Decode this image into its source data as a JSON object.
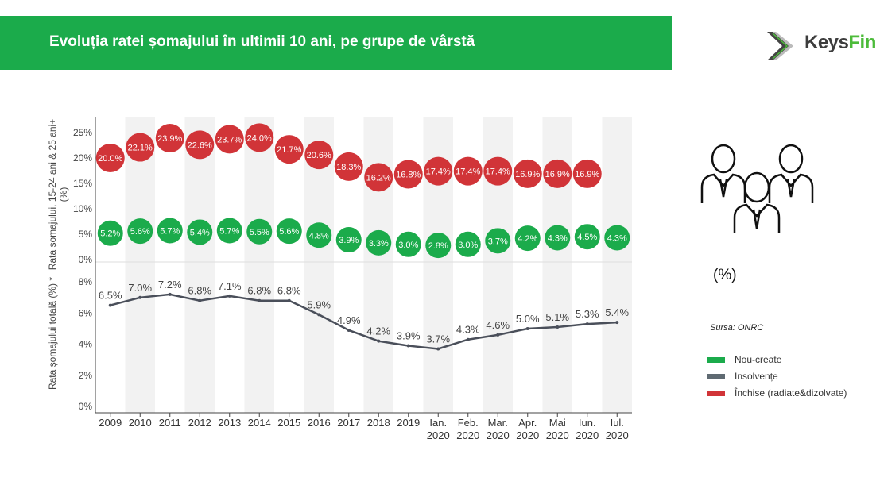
{
  "header": {
    "title": "Evoluția ratei șomajului în ultimii 10 ani, pe grupe de vârstă"
  },
  "logo": {
    "text_main": "Keys",
    "text_accent": "Fin"
  },
  "side": {
    "unit": "(%)",
    "source": "Sursa: ONRC",
    "icon": "people-group-icon"
  },
  "legend": [
    {
      "label": "Nou-create",
      "color": "#1bab4b"
    },
    {
      "label": "Insolvențe",
      "color": "#5f6a72"
    },
    {
      "label": "Închise (radiate&dizolvate)",
      "color": "#d13438"
    }
  ],
  "chart_data": [
    {
      "type": "scatter",
      "ylabel": "Rata șomajului, 15-24 ani & 25 ani+ (%)",
      "ylim": [
        0,
        27
      ],
      "yticks": [
        "0%",
        "5%",
        "10%",
        "15%",
        "20%",
        "25%"
      ],
      "ytick_values": [
        0,
        5,
        10,
        15,
        20,
        25
      ],
      "categories": [
        "2009",
        "2010",
        "2011",
        "2012",
        "2013",
        "2014",
        "2015",
        "2016",
        "2017",
        "2018",
        "2019",
        "Ian. 2020",
        "Feb. 2020",
        "Mar. 2020",
        "Apr. 2020",
        "Mai 2020",
        "Iun. 2020",
        "Iul. 2020"
      ],
      "series": [
        {
          "color": "#d13438",
          "values": [
            20.0,
            22.1,
            23.9,
            22.6,
            23.7,
            24.0,
            21.7,
            20.6,
            18.3,
            16.2,
            16.8,
            17.4,
            17.4,
            17.4,
            16.9,
            16.9,
            16.9,
            null
          ]
        },
        {
          "color": "#1bab4b",
          "values": [
            5.2,
            5.6,
            5.7,
            5.4,
            5.7,
            5.5,
            5.6,
            4.8,
            3.9,
            3.3,
            3.0,
            2.8,
            3.0,
            3.7,
            4.2,
            4.3,
            4.5,
            4.3
          ]
        }
      ]
    },
    {
      "type": "line",
      "ylabel": "Rata șomajului totală (%) *",
      "ylim": [
        0,
        8.5
      ],
      "yticks": [
        "0%",
        "2%",
        "4%",
        "6%",
        "8%"
      ],
      "ytick_values": [
        0,
        2,
        4,
        6,
        8
      ],
      "categories": [
        "2009",
        "2010",
        "2011",
        "2012",
        "2013",
        "2014",
        "2015",
        "2016",
        "2017",
        "2018",
        "2019",
        "Ian. 2020",
        "Feb. 2020",
        "Mar. 2020",
        "Apr. 2020",
        "Mai 2020",
        "Iun. 2020",
        "Iul. 2020"
      ],
      "xtick_lines": [
        [
          "2009"
        ],
        [
          "2010"
        ],
        [
          "2011"
        ],
        [
          "2012"
        ],
        [
          "2013"
        ],
        [
          "2014"
        ],
        [
          "2015"
        ],
        [
          "2016"
        ],
        [
          "2017"
        ],
        [
          "2018"
        ],
        [
          "2019"
        ],
        [
          "Ian.",
          "2020"
        ],
        [
          "Feb.",
          "2020"
        ],
        [
          "Mar.",
          "2020"
        ],
        [
          "Apr.",
          "2020"
        ],
        [
          "Mai",
          "2020"
        ],
        [
          "Iun.",
          "2020"
        ],
        [
          "Iul.",
          "2020"
        ]
      ],
      "series": [
        {
          "color": "#4a4f5a",
          "values": [
            6.5,
            7.0,
            7.2,
            6.8,
            7.1,
            6.8,
            6.8,
            5.9,
            4.9,
            4.2,
            3.9,
            3.7,
            4.3,
            4.6,
            5.0,
            5.1,
            5.3,
            5.4
          ]
        }
      ]
    }
  ]
}
